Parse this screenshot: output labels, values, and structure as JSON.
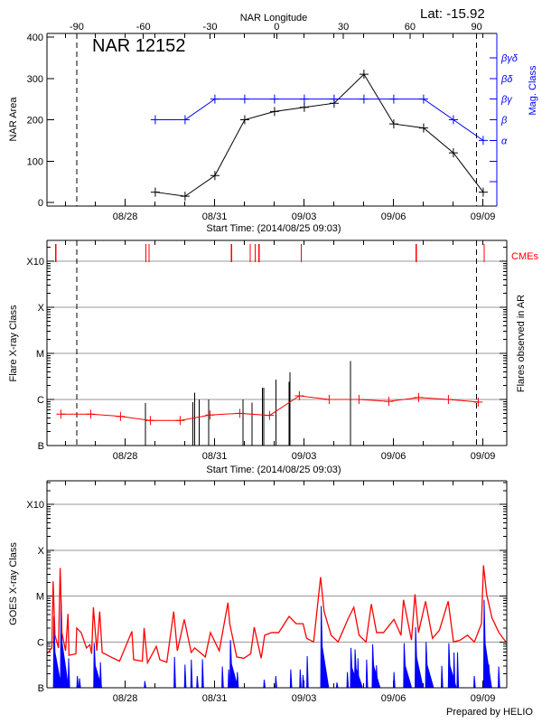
{
  "chart_data": [
    {
      "type": "line",
      "title": "NAR 12152",
      "annotation": "Lat: -15.92",
      "top_xlabel": "NAR Longitude",
      "xlabel": "Start Time: (2014/08/25 09:03)",
      "ylabel": "NAR Area",
      "y2label": "Mag. Class",
      "xlim": [
        "2014-08-25 09:03",
        "2014-09-09 11:20"
      ],
      "ylim": [
        0,
        400
      ],
      "yticks": [
        "0",
        "100",
        "200",
        "300",
        "400"
      ],
      "xticks": [
        "08/28",
        "08/31",
        "09/03",
        "09/06",
        "09/09"
      ],
      "longitude_ticks": [
        "-90",
        "-60",
        "-30",
        "0",
        "30",
        "60",
        "90"
      ],
      "limb_crossings": {
        "east": "2014-08-26 09:00",
        "west": "2014-09-08 19:00"
      },
      "mag_class_levels": [
        "α",
        "β",
        "βγ",
        "βδ",
        "βγδ"
      ],
      "x": [
        "2014-08-29 00:15",
        "2014-08-30 00:15",
        "2014-08-31 00:15",
        "2014-09-01 00:15",
        "2014-09-02 00:15",
        "2014-09-03 00:15",
        "2014-09-04 00:15",
        "2014-09-05 00:15",
        "2014-09-06 00:15",
        "2014-09-07 00:15",
        "2014-09-08 00:15",
        "2014-09-09 00:15"
      ],
      "area": [
        25,
        15,
        65,
        200,
        220,
        230,
        240,
        310,
        190,
        180,
        120,
        25
      ],
      "mag_class": [
        "β",
        "β",
        "βγ",
        "βγ",
        "βγ",
        "βγ",
        "βγ",
        "βγ",
        "βγ",
        "βγ",
        "β",
        "α"
      ],
      "colors": {
        "area": "#000000",
        "mag_class": "#0000ff"
      }
    },
    {
      "type": "bar",
      "xlabel": "Start Time: (2014/08/25 09:03)",
      "ylabel": "Flare X-ray Class",
      "y2label": "Flares observed in AR",
      "cme_label": "CMEs",
      "xlim": [
        "2014-08-25 09:03",
        "2014-09-09 19:00"
      ],
      "yticks": [
        "B",
        "C",
        "M",
        "X",
        "X10"
      ],
      "xticks": [
        "08/28",
        "08/31",
        "09/03",
        "09/06",
        "09/09"
      ],
      "grid": true,
      "flares": [
        [
          "2014-08-28 16:20",
          "B8.3"
        ],
        [
          "2014-08-30 06:40",
          "B8.8"
        ],
        [
          "2014-08-30 08:05",
          "C1.4"
        ],
        [
          "2014-08-30 11:40",
          "C1.0"
        ],
        [
          "2014-08-30 19:05",
          "C1.0"
        ],
        [
          "2014-08-31 22:50",
          "C1.0"
        ],
        [
          "2014-09-01 06:10",
          "B8.6"
        ],
        [
          "2014-09-01 14:20",
          "C1.8"
        ],
        [
          "2014-09-01 15:25",
          "C1.8"
        ],
        [
          "2014-09-02 01:20",
          "C2.7"
        ],
        [
          "2014-09-02 12:00",
          "C2.4"
        ],
        [
          "2014-09-02 12:50",
          "C3.9"
        ],
        [
          "2014-09-04 13:30",
          "C6.8"
        ]
      ],
      "cmes": [
        "2014-08-25 16:05",
        "2014-08-28 16:40",
        "2014-08-28 19:10",
        "2014-08-31 13:35",
        "2014-09-01 04:45",
        "2014-09-01 08:45",
        "2014-09-01 11:45",
        "2014-09-02 21:50",
        "2014-09-06 18:20",
        "2014-09-09 01:00"
      ],
      "daily_level": {
        "x": [
          "2014-08-25 20:15",
          "2014-08-26 20:15",
          "2014-08-27 20:15",
          "2014-08-28 20:15",
          "2014-08-29 20:15",
          "2014-08-30 20:15",
          "2014-08-31 20:15",
          "2014-09-01 20:15",
          "2014-09-02 20:15",
          "2014-09-03 20:15",
          "2014-09-04 20:15",
          "2014-09-05 20:15",
          "2014-09-06 20:15",
          "2014-09-07 20:15",
          "2014-09-08 20:15"
        ],
        "values": [
          "B4.8",
          "B4.8",
          "B4.3",
          "B3.5",
          "B3.5",
          "B4.6",
          "B5.0",
          "B4.5",
          "C1.2",
          "C1.0",
          "C1.0",
          "B9.1",
          "C1.1",
          "C1.0",
          "B8.8"
        ]
      },
      "colors": {
        "flares": "#000000",
        "cmes": "#ff0000",
        "daily_level": "#ff0000"
      }
    },
    {
      "type": "line",
      "ylabel": "GOES X-ray Class",
      "credit": "Prepared by HELIO",
      "xlim": [
        "2014-08-25 09:03",
        "2014-09-09 19:00"
      ],
      "yticks": [
        "B",
        "C",
        "M",
        "X",
        "X10"
      ],
      "xticks": [
        "08/28",
        "08/31",
        "09/03",
        "09/06",
        "09/09"
      ],
      "grid": true,
      "long_channel": [
        [
          "2014-08-25 09:03",
          "B5.5"
        ],
        [
          "2014-08-25 13:00",
          "B7.4"
        ],
        [
          "2014-08-25 14:00",
          "M2.1"
        ],
        [
          "2014-08-25 15:30",
          "C1.4"
        ],
        [
          "2014-08-25 18:20",
          "B7.4"
        ],
        [
          "2014-08-25 19:40",
          "M4.1"
        ],
        [
          "2014-08-25 21:05",
          "C1.6"
        ],
        [
          "2014-08-26 00:00",
          "B6.4"
        ],
        [
          "2014-08-26 02:00",
          "C4.1"
        ],
        [
          "2014-08-26 02:45",
          "B5.1"
        ],
        [
          "2014-08-26 08:20",
          "B5.5"
        ],
        [
          "2014-08-26 09:00",
          "C2.0"
        ],
        [
          "2014-08-26 12:35",
          "C1.6"
        ],
        [
          "2014-08-26 16:50",
          "B7.4"
        ],
        [
          "2014-08-26 19:35",
          "B8.7"
        ],
        [
          "2014-08-26 21:00",
          "B5.5"
        ],
        [
          "2014-08-26 22:25",
          "C5.7"
        ],
        [
          "2014-08-27 01:10",
          "B6.4"
        ],
        [
          "2014-08-27 03:30",
          "C4.6"
        ],
        [
          "2014-08-27 05:30",
          "B5.9"
        ],
        [
          "2014-08-27 12:30",
          "B4.7"
        ],
        [
          "2014-08-27 19:30",
          "B3.8"
        ],
        [
          "2014-08-28 05:25",
          "C1.7"
        ],
        [
          "2014-08-28 06:50",
          "B4.1"
        ],
        [
          "2014-08-28 13:50",
          "B3.8"
        ],
        [
          "2014-08-28 15:15",
          "C2.0"
        ],
        [
          "2014-08-28 18:00",
          "B3.5"
        ],
        [
          "2014-08-29 01:05",
          "B8.0"
        ],
        [
          "2014-08-29 03:55",
          "B4.1"
        ],
        [
          "2014-08-29 09:30",
          "B3.6"
        ],
        [
          "2014-08-29 15:05",
          "C4.6"
        ],
        [
          "2014-08-29 18:00",
          "B6.4"
        ],
        [
          "2014-08-29 23:35",
          "C3.1"
        ],
        [
          "2014-08-30 05:10",
          "B5.9"
        ],
        [
          "2014-08-30 08:00",
          "B7.4"
        ],
        [
          "2014-08-30 16:30",
          "B4.7"
        ],
        [
          "2014-08-30 20:40",
          "C1.6"
        ],
        [
          "2014-08-31 03:45",
          "B6.4"
        ],
        [
          "2014-08-31 10:45",
          "C7.2"
        ],
        [
          "2014-08-31 12:10",
          "C2.5"
        ],
        [
          "2014-08-31 17:50",
          "B4.7"
        ],
        [
          "2014-08-31 23:25",
          "B4.4"
        ],
        [
          "2014-09-01 05:05",
          "B5.5"
        ],
        [
          "2014-09-01 07:55",
          "C2.1"
        ],
        [
          "2014-09-01 13:30",
          "B4.4"
        ],
        [
          "2014-09-01 16:20",
          "C1.4"
        ],
        [
          "2014-09-01 21:55",
          "C1.6"
        ],
        [
          "2014-09-02 03:35",
          "C1.6"
        ],
        [
          "2014-09-02 12:00",
          "C3.6"
        ],
        [
          "2014-09-02 17:40",
          "C2.5"
        ],
        [
          "2014-09-02 23:15",
          "C2.5"
        ],
        [
          "2014-09-03 02:05",
          "C1.2"
        ],
        [
          "2014-09-03 07:45",
          "C1.0"
        ],
        [
          "2014-09-03 13:20",
          "M2.6"
        ],
        [
          "2014-09-03 16:10",
          "C4.6"
        ],
        [
          "2014-09-03 21:50",
          "C1.4"
        ],
        [
          "2014-09-04 03:25",
          "C1.0"
        ],
        [
          "2014-09-04 11:55",
          "C3.4"
        ],
        [
          "2014-09-04 16:05",
          "C5.7"
        ],
        [
          "2014-09-04 20:20",
          "C1.4"
        ],
        [
          "2014-09-05 01:55",
          "C1.0"
        ],
        [
          "2014-09-05 06:10",
          "C6.7"
        ],
        [
          "2014-09-05 10:25",
          "C1.6"
        ],
        [
          "2014-09-05 16:00",
          "C1.6"
        ],
        [
          "2014-09-06 00:25",
          "C3.1"
        ],
        [
          "2014-09-06 06:05",
          "C1.4"
        ],
        [
          "2014-09-06 08:05",
          "C8.3"
        ],
        [
          "2014-09-06 14:30",
          "C1.1"
        ],
        [
          "2014-09-06 17:20",
          "M1.1"
        ],
        [
          "2014-09-06 20:10",
          "C1.6"
        ],
        [
          "2014-09-07 01:50",
          "C7.7"
        ],
        [
          "2014-09-07 07:25",
          "C1.2"
        ],
        [
          "2014-09-07 13:00",
          "C1.8"
        ],
        [
          "2014-09-07 20:05",
          "C7.7"
        ],
        [
          "2014-09-08 00:20",
          "C1.0"
        ],
        [
          "2014-09-08 05:55",
          "C1.1"
        ],
        [
          "2014-09-08 11:35",
          "C1.4"
        ],
        [
          "2014-09-08 17:10",
          "C1.0"
        ],
        [
          "2014-09-08 22:50",
          "C2.5"
        ],
        [
          "2014-09-09 00:30",
          "M4.7"
        ],
        [
          "2014-09-09 03:00",
          "M1.1"
        ],
        [
          "2014-09-09 07:15",
          "C3.4"
        ],
        [
          "2014-09-09 12:55",
          "C1.6"
        ],
        [
          "2014-09-09 18:30",
          "C1.0"
        ]
      ],
      "short_channel_peaks": [
        [
          "2014-08-25 14:40",
          "C3.6"
        ],
        [
          "2014-08-25 20:20",
          "C9.7"
        ],
        [
          "2014-08-26 02:30",
          "B4.4"
        ],
        [
          "2014-08-26 09:30",
          "B1.8"
        ],
        [
          "2014-08-26 11:15",
          "B1.6"
        ],
        [
          "2014-08-26 23:05",
          "B9.4"
        ],
        [
          "2014-08-27 04:05",
          "B3.6"
        ],
        [
          "2014-08-28 15:50",
          "B1.4"
        ],
        [
          "2014-08-29 15:45",
          "B4.7"
        ],
        [
          "2014-08-30 00:10",
          "B3.2"
        ],
        [
          "2014-08-30 05:15",
          "B4.1"
        ],
        [
          "2014-08-30 10:00",
          "B1.8"
        ],
        [
          "2014-08-30 14:15",
          "B4.2"
        ],
        [
          "2014-08-31 06:15",
          "B2.9"
        ],
        [
          "2014-08-31 11:20",
          "B2.5"
        ],
        [
          "2014-08-31 12:45",
          "C1.1"
        ],
        [
          "2014-08-31 18:20",
          "B2.2"
        ],
        [
          "2014-09-01 15:55",
          "B1.5"
        ],
        [
          "2014-09-02 01:15",
          "B1.8"
        ],
        [
          "2014-09-02 13:20",
          "B2.5"
        ],
        [
          "2014-09-02 20:55",
          "B2.5"
        ],
        [
          "2014-09-02 23:10",
          "B1.9"
        ],
        [
          "2014-09-03 02:35",
          "B4.9"
        ],
        [
          "2014-09-03 13:50",
          "C6.1"
        ],
        [
          "2014-09-04 02:30",
          "B1.3"
        ],
        [
          "2014-09-04 10:55",
          "B2.2"
        ],
        [
          "2014-09-04 13:45",
          "B7.4"
        ],
        [
          "2014-09-04 17:05",
          "B6.9"
        ],
        [
          "2014-09-04 19:25",
          "B4.4"
        ],
        [
          "2014-09-05 02:25",
          "B4.1"
        ],
        [
          "2014-09-05 07:15",
          "B8.9"
        ],
        [
          "2014-09-05 10:20",
          "B3.1"
        ],
        [
          "2014-09-06 00:25",
          "B2.2"
        ],
        [
          "2014-09-06 08:35",
          "B9.4"
        ],
        [
          "2014-09-06 17:50",
          "C2.1"
        ],
        [
          "2014-09-07 02:15",
          "C1.0"
        ],
        [
          "2014-09-07 14:55",
          "B3.0"
        ],
        [
          "2014-09-07 20:35",
          "B9.4"
        ],
        [
          "2014-09-08 00:45",
          "B5.9"
        ],
        [
          "2014-09-08 03:35",
          "B5.9"
        ],
        [
          "2014-09-08 17:05",
          "B1.8"
        ],
        [
          "2014-09-09 01:00",
          "C8.3"
        ],
        [
          "2014-09-09 04:50",
          "B3.2"
        ],
        [
          "2014-09-09 12:45",
          "B2.9"
        ]
      ],
      "colors": {
        "long_channel": "#ff0000",
        "short_channel": "#0000ff"
      }
    }
  ]
}
